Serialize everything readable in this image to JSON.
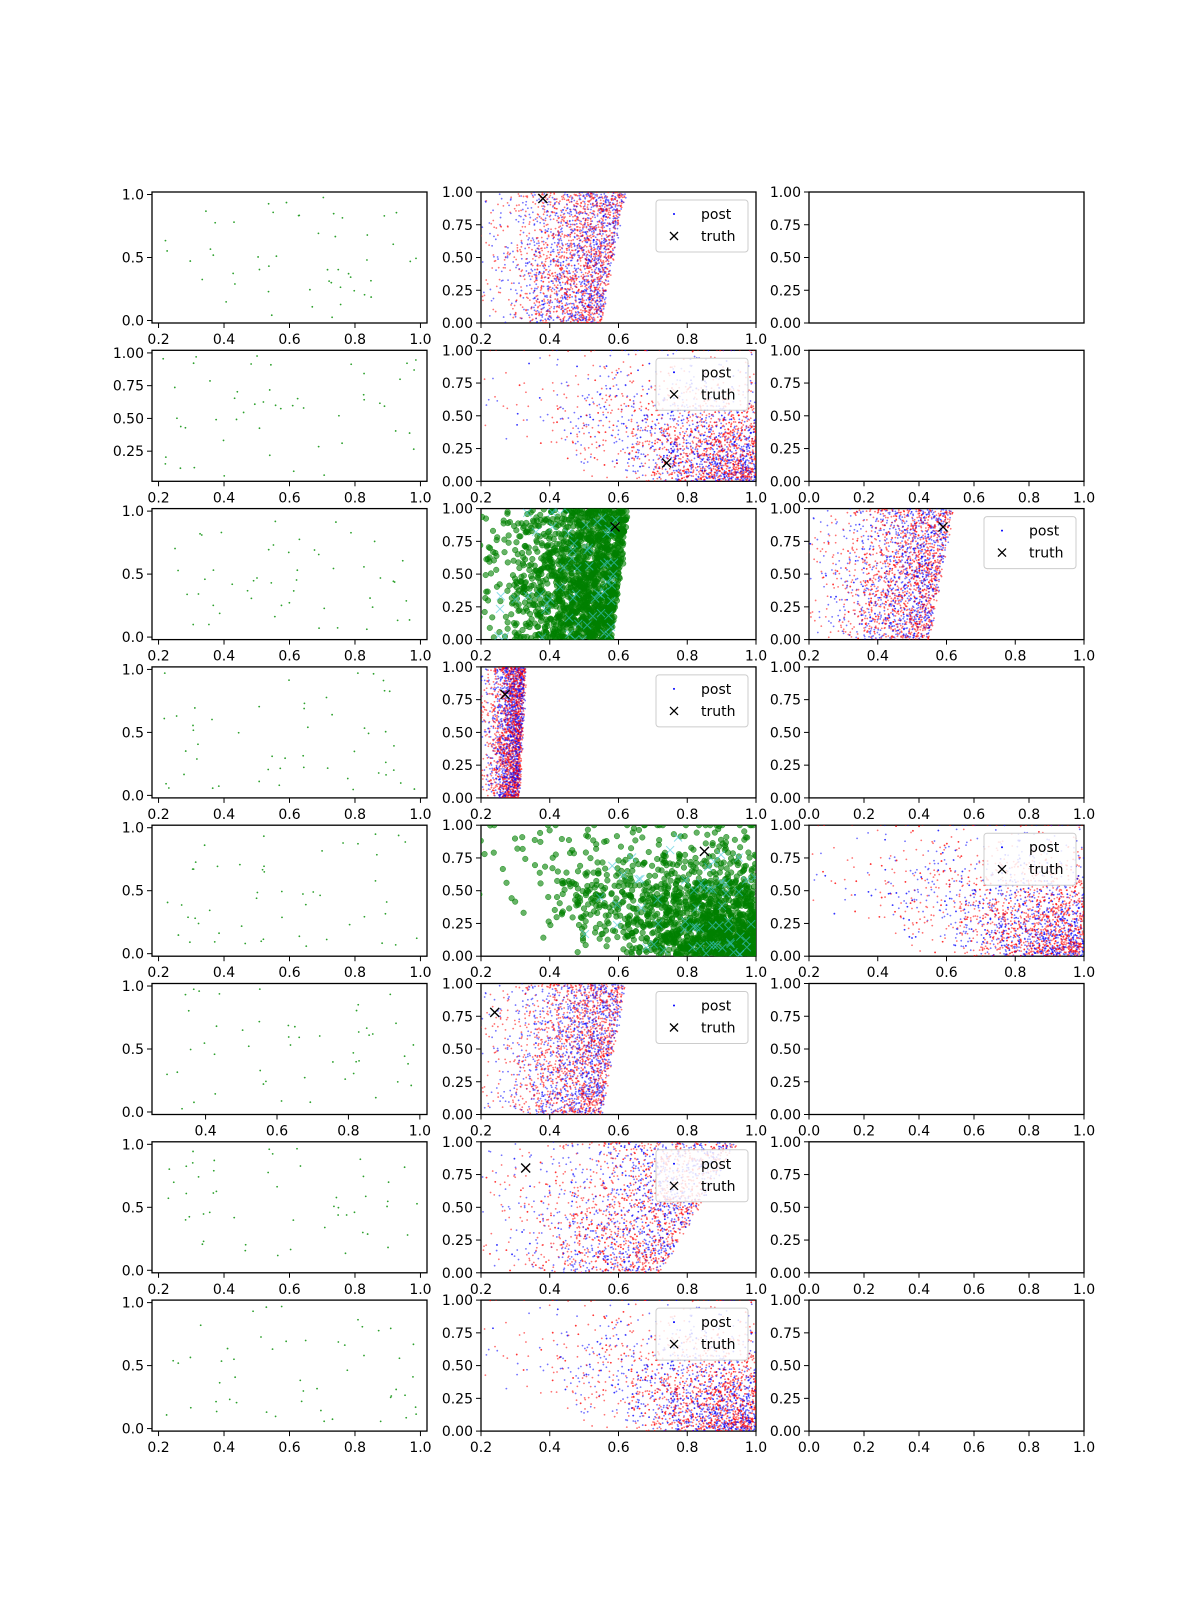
{
  "chart_data": {
    "type": "scatter",
    "grid": false,
    "layout": {
      "rows": 8,
      "cols": 3
    },
    "legend": {
      "post_label": "post",
      "truth_label": "truth",
      "placement": "upper right"
    },
    "colors": {
      "observed": "#2ca02c",
      "post_a": "#ff0000",
      "post_b": "#0000ff",
      "mask_fill": "#008000",
      "mask_cross": "#40c8d8",
      "truth": "#000000",
      "axis": "#000000"
    },
    "rows": [
      {
        "observed": {
          "xlim": [
            0.18,
            1.02
          ],
          "ylim": [
            -0.02,
            1.02
          ],
          "xticks": [
            "0.2",
            "0.4",
            "0.6",
            "0.8",
            "1.0"
          ],
          "yticks": [
            "0.0",
            "0.5",
            "1.0"
          ]
        },
        "posterior": {
          "xlim": [
            0.2,
            1.0
          ],
          "ylim": [
            0,
            1
          ],
          "xticks": [
            "0.2",
            "0.4",
            "0.6",
            "0.8",
            "1.0"
          ],
          "yticks": [
            "0.00",
            "0.25",
            "0.50",
            "0.75",
            "1.00"
          ],
          "truth": [
            0.38,
            0.95
          ],
          "shape": "wedge",
          "x_low": 0.2,
          "x_high_bottom": 0.55,
          "x_high_top": 0.62,
          "legend": true
        },
        "third": {
          "xlim": [
            0,
            1
          ],
          "ylim": [
            0,
            1
          ],
          "xticks": [],
          "yticks": [
            "0.00",
            "0.25",
            "0.50",
            "0.75",
            "1.00"
          ]
        }
      },
      {
        "observed": {
          "xlim": [
            0.18,
            1.02
          ],
          "ylim": [
            0.02,
            1.02
          ],
          "xticks": [
            "0.2",
            "0.4",
            "0.6",
            "0.8",
            "1.0"
          ],
          "yticks": [
            "0.25",
            "0.50",
            "0.75",
            "1.00"
          ]
        },
        "posterior": {
          "xlim": [
            0.2,
            1.0
          ],
          "ylim": [
            0,
            1
          ],
          "xticks": [
            "0.2",
            "0.4",
            "0.6",
            "0.8",
            "1.0"
          ],
          "yticks": [
            "0.00",
            "0.25",
            "0.50",
            "0.75",
            "1.00"
          ],
          "truth": [
            0.74,
            0.14
          ],
          "shape": "corner",
          "x_low": 0.2,
          "x_high_bottom": 1.0,
          "x_high_top": 1.0,
          "legend": true
        },
        "third": {
          "xlim": [
            0,
            1
          ],
          "ylim": [
            0,
            1
          ],
          "xticks": [
            "0.0",
            "0.2",
            "0.4",
            "0.6",
            "0.8",
            "1.0"
          ],
          "yticks": [
            "0.00",
            "0.25",
            "0.50",
            "0.75",
            "1.00"
          ]
        }
      },
      {
        "observed": {
          "xlim": [
            0.18,
            1.02
          ],
          "ylim": [
            -0.02,
            1.02
          ],
          "xticks": [
            "0.2",
            "0.4",
            "0.6",
            "0.8",
            "1.0"
          ],
          "yticks": [
            "0.0",
            "0.5",
            "1.0"
          ]
        },
        "posterior": {
          "xlim": [
            0.2,
            1.0
          ],
          "ylim": [
            0,
            1
          ],
          "xticks": [
            "0.2",
            "0.4",
            "0.6",
            "0.8",
            "1.0"
          ],
          "yticks": [
            "0.00",
            "0.25",
            "0.50",
            "0.75",
            "1.00"
          ],
          "truth": [
            0.59,
            0.86
          ],
          "shape": "wedge",
          "x_low": 0.2,
          "x_high_bottom": 0.58,
          "x_high_top": 0.63,
          "legend": false,
          "mask": true
        },
        "third": {
          "xlim": [
            0.2,
            1.0
          ],
          "ylim": [
            0,
            1
          ],
          "xticks": [
            "0.2",
            "0.4",
            "0.6",
            "0.8",
            "1.0"
          ],
          "yticks": [
            "0.00",
            "0.25",
            "0.50",
            "0.75",
            "1.00"
          ],
          "truth": [
            0.59,
            0.86
          ],
          "shape": "wedge",
          "x_low": 0.2,
          "x_high_bottom": 0.55,
          "x_high_top": 0.62,
          "legend": true
        }
      },
      {
        "observed": {
          "xlim": [
            0.18,
            1.02
          ],
          "ylim": [
            -0.02,
            1.02
          ],
          "xticks": [
            "0.2",
            "0.4",
            "0.6",
            "0.8",
            "1.0"
          ],
          "yticks": [
            "0.0",
            "0.5",
            "1.0"
          ]
        },
        "posterior": {
          "xlim": [
            0.2,
            1.0
          ],
          "ylim": [
            0,
            1
          ],
          "xticks": [
            "0.2",
            "0.4",
            "0.6",
            "0.8",
            "1.0"
          ],
          "yticks": [
            "0.00",
            "0.25",
            "0.50",
            "0.75",
            "1.00"
          ],
          "truth": [
            0.27,
            0.79
          ],
          "shape": "wedge",
          "x_low": 0.2,
          "x_high_bottom": 0.31,
          "x_high_top": 0.33,
          "legend": true
        },
        "third": {
          "xlim": [
            0,
            1
          ],
          "ylim": [
            0,
            1
          ],
          "xticks": [
            "0.0",
            "0.2",
            "0.4",
            "0.6",
            "0.8",
            "1.0"
          ],
          "yticks": [
            "0.00",
            "0.25",
            "0.50",
            "0.75",
            "1.00"
          ]
        }
      },
      {
        "observed": {
          "xlim": [
            0.18,
            1.02
          ],
          "ylim": [
            -0.02,
            1.02
          ],
          "xticks": [
            "0.2",
            "0.4",
            "0.6",
            "0.8",
            "1.0"
          ],
          "yticks": [
            "0.0",
            "0.5",
            "1.0"
          ]
        },
        "posterior": {
          "xlim": [
            0.2,
            1.0
          ],
          "ylim": [
            0,
            1
          ],
          "xticks": [
            "0.2",
            "0.4",
            "0.6",
            "0.8",
            "1.0"
          ],
          "yticks": [
            "0.00",
            "0.25",
            "0.50",
            "0.75",
            "1.00"
          ],
          "truth": [
            0.85,
            0.8
          ],
          "shape": "corner",
          "x_low": 0.2,
          "x_high_bottom": 1.0,
          "x_high_top": 1.0,
          "legend": false,
          "mask": true
        },
        "third": {
          "xlim": [
            0.2,
            1.0
          ],
          "ylim": [
            0,
            1
          ],
          "xticks": [
            "0.2",
            "0.4",
            "0.6",
            "0.8",
            "1.0"
          ],
          "yticks": [
            "0.00",
            "0.25",
            "0.50",
            "0.75",
            "1.00"
          ],
          "shape": "corner",
          "x_low": 0.2,
          "x_high_bottom": 1.0,
          "x_high_top": 1.0,
          "legend": true
        }
      },
      {
        "observed": {
          "xlim": [
            0.25,
            1.02
          ],
          "ylim": [
            -0.02,
            1.02
          ],
          "xticks": [
            "0.4",
            "0.6",
            "0.8",
            "1.0"
          ],
          "yticks": [
            "0.0",
            "0.5",
            "1.0"
          ]
        },
        "posterior": {
          "xlim": [
            0.2,
            1.0
          ],
          "ylim": [
            0,
            1
          ],
          "xticks": [
            "0.2",
            "0.4",
            "0.6",
            "0.8",
            "1.0"
          ],
          "yticks": [
            "0.00",
            "0.25",
            "0.50",
            "0.75",
            "1.00"
          ],
          "truth": [
            0.24,
            0.78
          ],
          "shape": "wedge",
          "x_low": 0.2,
          "x_high_bottom": 0.55,
          "x_high_top": 0.62,
          "legend": true
        },
        "third": {
          "xlim": [
            0,
            1
          ],
          "ylim": [
            0,
            1
          ],
          "xticks": [
            "0.0",
            "0.2",
            "0.4",
            "0.6",
            "0.8",
            "1.0"
          ],
          "yticks": [
            "0.00",
            "0.25",
            "0.50",
            "0.75",
            "1.00"
          ]
        }
      },
      {
        "observed": {
          "xlim": [
            0.18,
            1.02
          ],
          "ylim": [
            -0.02,
            1.02
          ],
          "xticks": [
            "0.2",
            "0.4",
            "0.6",
            "0.8",
            "1.0"
          ],
          "yticks": [
            "0.0",
            "0.5",
            "1.0"
          ]
        },
        "posterior": {
          "xlim": [
            0.2,
            1.0
          ],
          "ylim": [
            0,
            1
          ],
          "xticks": [
            "0.2",
            "0.4",
            "0.6",
            "0.8",
            "1.0"
          ],
          "yticks": [
            "0.00",
            "0.25",
            "0.50",
            "0.75",
            "1.00"
          ],
          "truth": [
            0.33,
            0.8
          ],
          "shape": "wedge",
          "x_low": 0.2,
          "x_high_bottom": 0.72,
          "x_high_top": 0.95,
          "legend": true
        },
        "third": {
          "xlim": [
            0,
            1
          ],
          "ylim": [
            0,
            1
          ],
          "xticks": [
            "0.0",
            "0.2",
            "0.4",
            "0.6",
            "0.8",
            "1.0"
          ],
          "yticks": [
            "0.00",
            "0.25",
            "0.50",
            "0.75",
            "1.00"
          ]
        }
      },
      {
        "observed": {
          "xlim": [
            0.18,
            1.02
          ],
          "ylim": [
            -0.02,
            1.02
          ],
          "xticks": [
            "0.2",
            "0.4",
            "0.6",
            "0.8",
            "1.0"
          ],
          "yticks": [
            "0.0",
            "0.5",
            "1.0"
          ]
        },
        "posterior": {
          "xlim": [
            0.2,
            1.0
          ],
          "ylim": [
            0,
            1
          ],
          "xticks": [
            "0.2",
            "0.4",
            "0.6",
            "0.8",
            "1.0"
          ],
          "yticks": [
            "0.00",
            "0.25",
            "0.50",
            "0.75",
            "1.00"
          ],
          "shape": "corner",
          "x_low": 0.2,
          "x_high_bottom": 1.0,
          "x_high_top": 1.0,
          "legend": true
        },
        "third": {
          "xlim": [
            0,
            1
          ],
          "ylim": [
            0,
            1
          ],
          "xticks": [
            "0.0",
            "0.2",
            "0.4",
            "0.6",
            "0.8",
            "1.0"
          ],
          "yticks": [
            "0.00",
            "0.25",
            "0.50",
            "0.75",
            "1.00"
          ]
        }
      }
    ]
  }
}
